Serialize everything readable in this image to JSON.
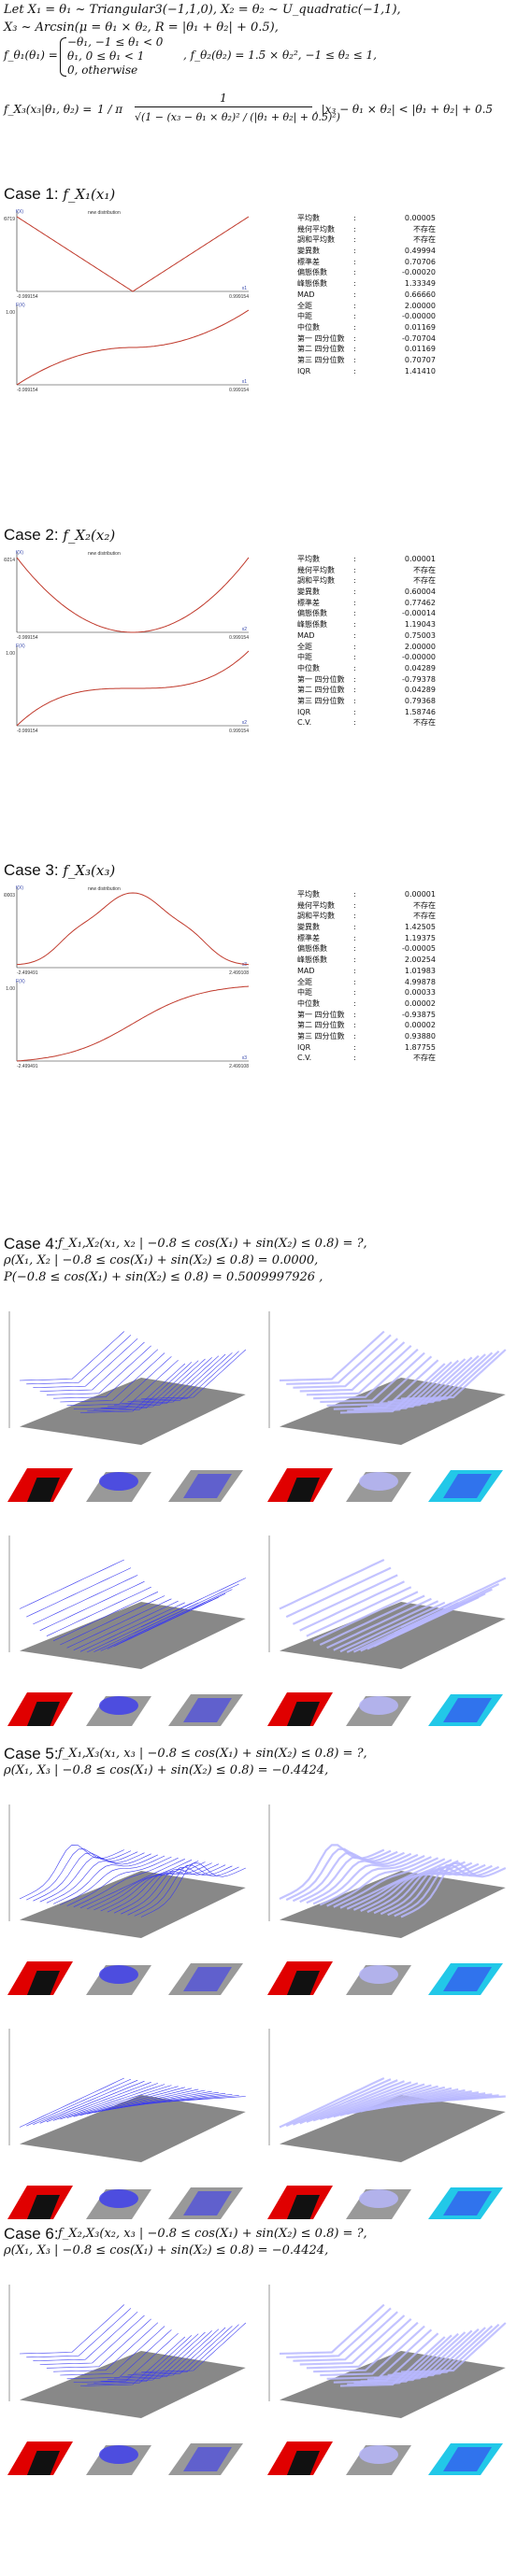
{
  "header": {
    "line1": "Let  X₁ = θ₁ ~ Triangular3(−1,1,0), X₂ = θ₂ ~ U_quadratic(−1,1),",
    "line2": "X₃ ~ Arcsin(μ = θ₁ × θ₂, R = |θ₁ + θ₂| + 0.5),",
    "pdf1_lhs": "f_θ₁(θ₁) =",
    "pdf1_cases": [
      "−θ₁, −1 ≤ θ₁ < 0",
      "θ₁, 0 ≤ θ₁ < 1",
      "0, otherwise"
    ],
    "pdf2": ",  f_θ₂(θ₂) = 1.5 × θ₂², −1 ≤ θ₂ ≤ 1,",
    "pdf3_lhs": "f_X₃(x₃|θ₁, θ₂) =",
    "pdf3_frac1": "1 / π",
    "pdf3_frac2_num": "1",
    "pdf3_frac2_den": "√(1 − (x₃ − θ₁ × θ₂)² / (|θ₁ + θ₂| + 0.5)²)",
    "pdf3_rest": ", |x₃ − θ₁ × θ₂| < |θ₁ + θ₂| + 0.5"
  },
  "cases_1d": [
    {
      "title": "Case 1:",
      "func": "f_X₁(x₁)",
      "top_plot": {
        "label": "new distribution",
        "y_axis": "f(X)",
        "y_max": "0.99719",
        "x_min": "-0.999154",
        "x_max": "0.999154",
        "x_axis": "x1"
      },
      "bottom_plot": {
        "y_axis": "F(X)",
        "y_max": "1.00",
        "x_min": "-0.999154",
        "x_max": "0.999154",
        "x_axis": "x1"
      },
      "stats": [
        {
          "label": "平均數",
          "colon": ":",
          "value": "0.00005"
        },
        {
          "label": "幾何平均數",
          "colon": ":",
          "value": "不存在"
        },
        {
          "label": "調和平均數",
          "colon": ":",
          "value": "不存在"
        },
        {
          "label": "變異數",
          "colon": ":",
          "value": "0.49994"
        },
        {
          "label": "標準差",
          "colon": ":",
          "value": "0.70706"
        },
        {
          "label": "偏態係數",
          "colon": ":",
          "value": "-0.00020"
        },
        {
          "label": "峰態係數",
          "colon": ":",
          "value": "1.33349"
        },
        {
          "label": "MAD",
          "colon": ":",
          "value": "0.66660"
        },
        {
          "label": "全距",
          "colon": ":",
          "value": "2.00000"
        },
        {
          "label": "中距",
          "colon": ":",
          "value": "-0.00000"
        },
        {
          "label": "中位數",
          "colon": ":",
          "value": "0.01169"
        },
        {
          "label": "第一 四分位數",
          "colon": ":",
          "value": "-0.70704"
        },
        {
          "label": "第二 四分位數",
          "colon": ":",
          "value": "0.01169"
        },
        {
          "label": "第三 四分位數",
          "colon": ":",
          "value": "0.70707"
        },
        {
          "label": "IQR",
          "colon": ":",
          "value": "1.41410"
        }
      ]
    },
    {
      "title": "Case 2:",
      "func": "f_X₂(x₂)",
      "top_plot": {
        "label": "new distribution",
        "y_axis": "f(X)",
        "y_max": "1.49214",
        "x_min": "-0.999154",
        "x_max": "0.999154",
        "x_axis": "x2"
      },
      "bottom_plot": {
        "y_axis": "F(X)",
        "y_max": "1.00",
        "x_min": "-0.999154",
        "x_max": "0.999154",
        "x_axis": "x2"
      },
      "stats": [
        {
          "label": "平均數",
          "colon": ":",
          "value": "0.00001"
        },
        {
          "label": "幾何平均數",
          "colon": ":",
          "value": "不存在"
        },
        {
          "label": "調和平均數",
          "colon": ":",
          "value": "不存在"
        },
        {
          "label": "變異數",
          "colon": ":",
          "value": "0.60004"
        },
        {
          "label": "標準差",
          "colon": ":",
          "value": "0.77462"
        },
        {
          "label": "偏態係數",
          "colon": ":",
          "value": "-0.00014"
        },
        {
          "label": "峰態係數",
          "colon": ":",
          "value": "1.19043"
        },
        {
          "label": "MAD",
          "colon": ":",
          "value": "0.75003"
        },
        {
          "label": "全距",
          "colon": ":",
          "value": "2.00000"
        },
        {
          "label": "中距",
          "colon": ":",
          "value": "-0.00000"
        },
        {
          "label": "中位數",
          "colon": ":",
          "value": "0.04289"
        },
        {
          "label": "第一 四分位數",
          "colon": ":",
          "value": "-0.79378"
        },
        {
          "label": "第二 四分位數",
          "colon": ":",
          "value": "0.04289"
        },
        {
          "label": "第三 四分位數",
          "colon": ":",
          "value": "0.79368"
        },
        {
          "label": "IQR",
          "colon": ":",
          "value": "1.58746"
        },
        {
          "label": "C.V.",
          "colon": ":",
          "value": "不存在"
        }
      ]
    },
    {
      "title": "Case 3:",
      "func": "f_X₃(x₃)",
      "top_plot": {
        "label": "new distribution",
        "y_axis": "f(X)",
        "y_max": "0.30003",
        "x_min": "-2.499491",
        "x_max": "2.499108",
        "x_axis": "x3"
      },
      "bottom_plot": {
        "y_axis": "F(X)",
        "y_max": "1.00",
        "x_min": "-2.499491",
        "x_max": "2.499108",
        "x_axis": "x3"
      },
      "stats": [
        {
          "label": "平均數",
          "colon": ":",
          "value": "0.00001"
        },
        {
          "label": "幾何平均數",
          "colon": ":",
          "value": "不存在"
        },
        {
          "label": "調和平均數",
          "colon": ":",
          "value": "不存在"
        },
        {
          "label": "變異數",
          "colon": ":",
          "value": "1.42505"
        },
        {
          "label": "標準差",
          "colon": ":",
          "value": "1.19375"
        },
        {
          "label": "偏態係數",
          "colon": ":",
          "value": "-0.00005"
        },
        {
          "label": "峰態係數",
          "colon": ":",
          "value": "2.00254"
        },
        {
          "label": "MAD",
          "colon": ":",
          "value": "1.01983"
        },
        {
          "label": "全距",
          "colon": ":",
          "value": "4.99878"
        },
        {
          "label": "中距",
          "colon": ":",
          "value": "0.00033"
        },
        {
          "label": "中位數",
          "colon": ":",
          "value": "0.00002"
        },
        {
          "label": "第一 四分位數",
          "colon": ":",
          "value": "-0.93875"
        },
        {
          "label": "第二 四分位數",
          "colon": ":",
          "value": "0.00002"
        },
        {
          "label": "第三 四分位數",
          "colon": ":",
          "value": "0.93880"
        },
        {
          "label": "IQR",
          "colon": ":",
          "value": "1.87755"
        },
        {
          "label": "C.V.",
          "colon": ":",
          "value": "不存在"
        }
      ]
    }
  ],
  "cases_2d": [
    {
      "title": "Case 4:",
      "lines": [
        "f_X₁,X₂(x₁, x₂ | −0.8 ≤ cos(X₁) + sin(X₂) ≤ 0.8) = ?,",
        "ρ(X₁, X₂ | −0.8 ≤ cos(X₁) + sin(X₂) ≤ 0.8) = 0.0000,",
        "P(−0.8 ≤ cos(X₁) + sin(X₂) ≤ 0.8) = 0.5009997926 ,"
      ]
    },
    {
      "title": "Case 5:",
      "lines": [
        "f_X₁,X₃(x₁, x₃ | −0.8 ≤ cos(X₁) + sin(X₂) ≤ 0.8) = ?,",
        "ρ(X₁, X₃ | −0.8 ≤ cos(X₁) + sin(X₂) ≤ 0.8) = −0.4424,"
      ]
    },
    {
      "title": "Case 6:",
      "lines": [
        "f_X₂,X₃(x₂, x₃ | −0.8 ≤ cos(X₁) + sin(X₂) ≤ 0.8) = ?,",
        "ρ(X₁, X₃ | −0.8 ≤ cos(X₁) + sin(X₂) ≤ 0.8) = −0.4424,"
      ]
    }
  ],
  "colors": {
    "curve": "#c0392b",
    "surface": "#3a3af0",
    "surface_light": "#b8b8ff",
    "floor": "#888888",
    "red_panel": "#e00000",
    "cyan": "#22c8e8"
  }
}
